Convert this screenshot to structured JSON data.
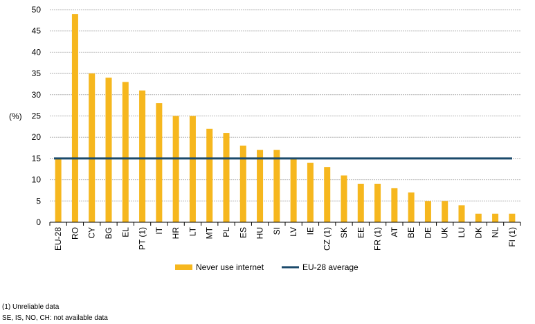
{
  "chart_data": {
    "type": "bar",
    "ylabel": "(%)",
    "ylim": [
      0,
      50
    ],
    "yticks": [
      "0",
      "5",
      "10",
      "15",
      "20",
      "25",
      "30",
      "35",
      "40",
      "45",
      "50"
    ],
    "grid": true,
    "legend_placement": "bottom",
    "categories": [
      "EU-28",
      "RO",
      "CY",
      "BG",
      "EL",
      "PT (1)",
      "IT",
      "HR",
      "LT",
      "MT",
      "PL",
      "ES",
      "HU",
      "SI",
      "LV",
      "IE",
      "CZ (1)",
      "SK",
      "EE",
      "FR (1)",
      "AT",
      "BE",
      "DE",
      "UK",
      "LU",
      "DK",
      "NL",
      "FI (1)"
    ],
    "series": [
      {
        "name": "Never use internet",
        "type": "bar",
        "color": "#f6b71e",
        "values": [
          15,
          49,
          35,
          34,
          33,
          31,
          28,
          25,
          25,
          22,
          21,
          18,
          17,
          17,
          15,
          14,
          13,
          11,
          9,
          9,
          8,
          7,
          5,
          5,
          4,
          2,
          2,
          2
        ]
      },
      {
        "name": "EU-28 average",
        "type": "line",
        "color": "#1b4a6b",
        "value": 15
      }
    ]
  },
  "footnotes": {
    "note1": "(1) Unreliable data",
    "note2": "SE, IS, NO, CH: not available data"
  }
}
